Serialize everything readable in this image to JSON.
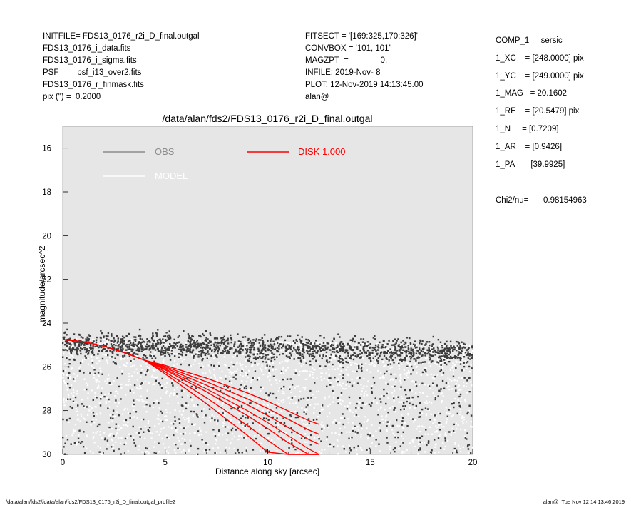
{
  "header_left": [
    "INITFILE= FDS13_0176_r2i_D_final.outgal",
    "FDS13_0176_i_data.fits",
    "FDS13_0176_i_sigma.fits",
    "PSF     = psf_i13_over2.fits",
    "FDS13_0176_r_finmask.fits",
    "pix (\") =  0.2000"
  ],
  "header_mid": [
    "FITSECT = '[169:325,170:326]'",
    "CONVBOX = '101, 101'",
    "MAGZPT  =              0.",
    "INFILE: 2019-Nov- 8",
    "PLOT: 12-Nov-2019 14:13:45.00",
    "alan@"
  ],
  "components": [
    "COMP_1  = sersic",
    "1_XC    = [248.0000] pix",
    "1_YC    = [249.0000] pix",
    "1_MAG   = 20.1602",
    "1_RE    = [20.5479] pix",
    "1_N     = [0.7209]",
    "1_AR    = [0.9426]",
    "1_PA    = [39.9925]"
  ],
  "chi2_label": "Chi2/nu=",
  "chi2_value": "0.98154963",
  "footer_left": "/data/alan/fds2//data/alan/fds2/FDS13_0176_r2i_D_final.outgal_profile2",
  "footer_right": "alan@  Tue Nov 12 14:13:46 2019",
  "chart_data": {
    "type": "scatter",
    "title": "/data/alan/fds2/FDS13_0176_r2i_D_final.outgal",
    "xlabel": "Distance along sky [arcsec]",
    "ylabel": "magnitude/arcsec^2",
    "xlim": [
      0,
      20
    ],
    "ylim": [
      30,
      15
    ],
    "y_inverted": true,
    "x_ticks": [
      "0",
      "5",
      "10",
      "15",
      "20"
    ],
    "y_ticks": [
      "16",
      "18",
      "20",
      "22",
      "24",
      "26",
      "28",
      "30"
    ],
    "grid": false,
    "legend_placement": "top",
    "legend": [
      {
        "label": "OBS",
        "color": "#8c8c8c"
      },
      {
        "label": "MODEL",
        "color": "#ffffff"
      },
      {
        "label": "DISK  1.000",
        "color": "#ff0000"
      }
    ],
    "colors": {
      "background": "#e6e6e6",
      "obs_points": "#3c3c3c",
      "model_points": "#ffffff",
      "disk": "#ff0000"
    },
    "series": [
      {
        "name": "OBS",
        "kind": "points",
        "description_values": {
          "x_range": [
            0,
            20
          ],
          "upper_envelope_mag": 24.4,
          "lower_envelope_mag": 30
        }
      },
      {
        "name": "MODEL",
        "kind": "points",
        "description_values": {
          "x_range": [
            0,
            20
          ],
          "upper_envelope_mag": 24.7,
          "lower_envelope_mag": 30
        }
      },
      {
        "name": "DISK  1.000",
        "kind": "curve",
        "x": [
          0,
          1,
          2,
          3,
          4,
          5,
          6,
          7,
          8,
          9,
          10,
          11,
          12,
          12.5
        ],
        "y": [
          24.75,
          24.85,
          25.05,
          25.35,
          25.7,
          26.1,
          26.55,
          27.0,
          27.5,
          28.0,
          28.55,
          29.15,
          29.75,
          30.0
        ]
      }
    ]
  }
}
